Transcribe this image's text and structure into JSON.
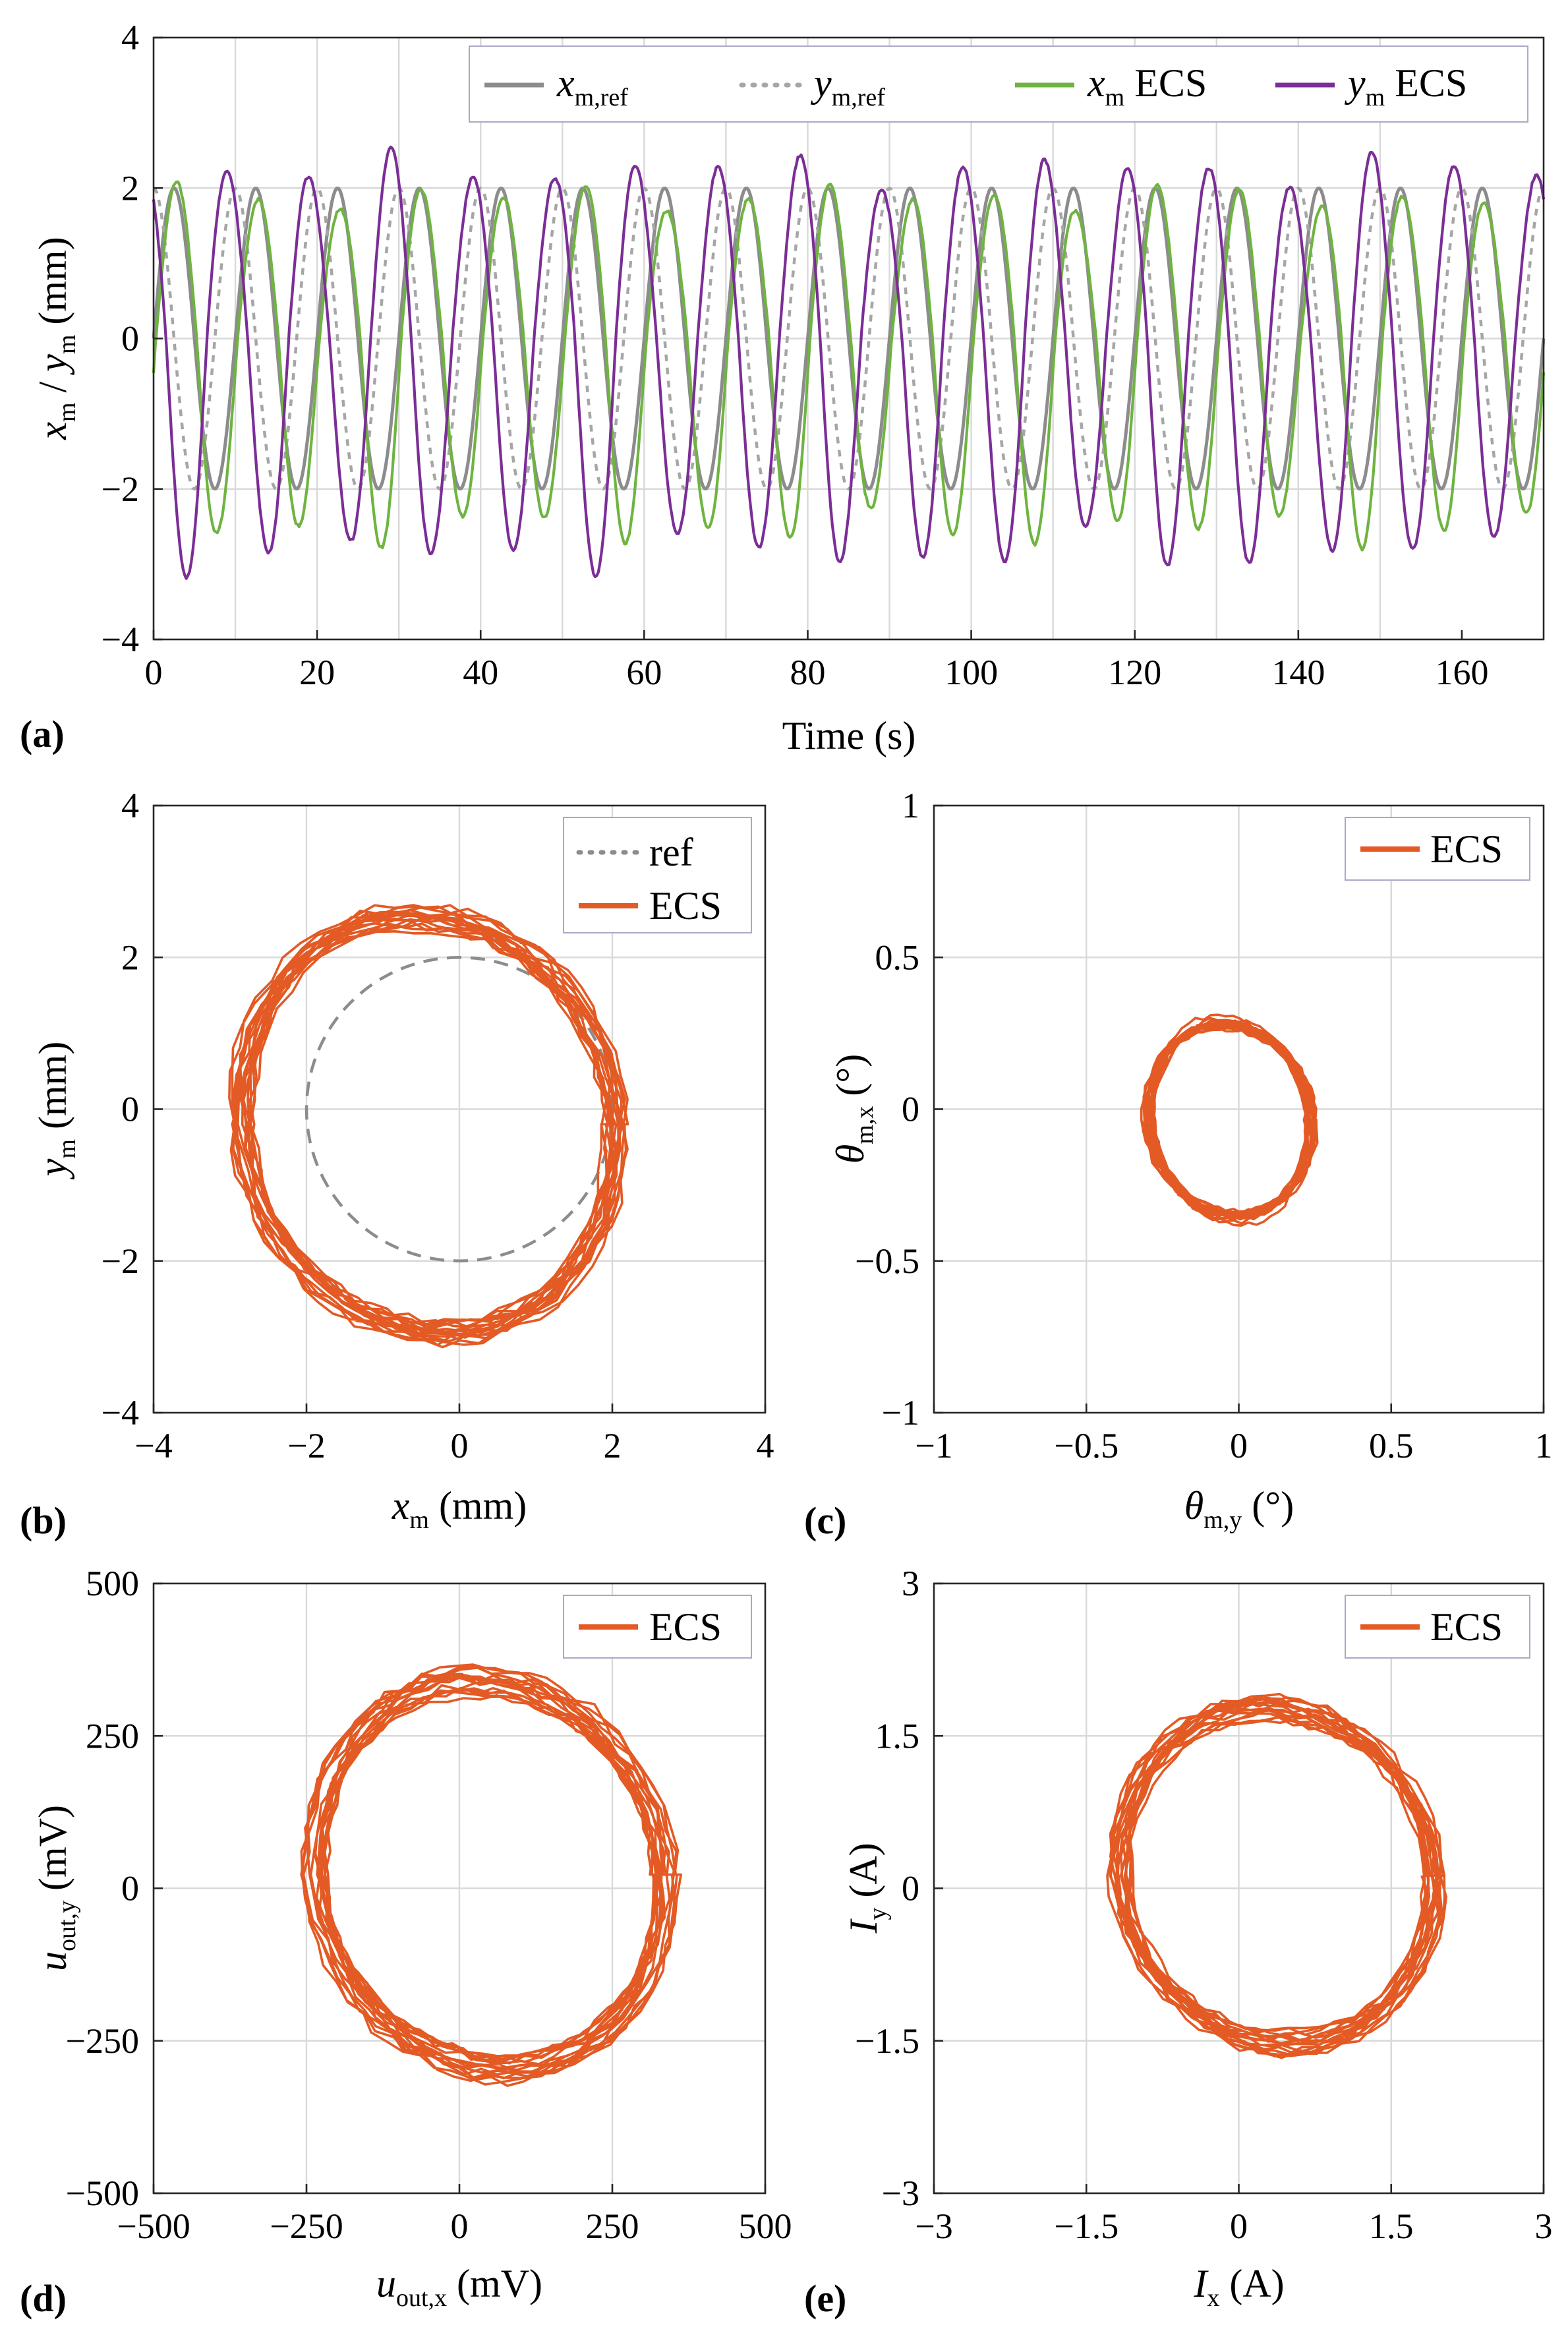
{
  "colors": {
    "xref": "#8c8c8c",
    "yref": "#a6a6a6",
    "xecs": "#6fb441",
    "yecs": "#7b2e96",
    "ecs": "#e35a24",
    "grid": "#d9d9d9"
  },
  "chart_data": [
    {
      "id": "a",
      "type": "line",
      "panel_label": "(a)",
      "xlabel": "Time (s)",
      "ylabel": "x_m / y_m (mm)",
      "xlim": [
        0,
        170
      ],
      "ylim": [
        -4,
        4
      ],
      "xticks": [
        0,
        20,
        40,
        60,
        80,
        100,
        120,
        140,
        160
      ],
      "yticks": [
        -4,
        -2,
        0,
        2,
        4
      ],
      "xticklabels": [
        "0",
        "20",
        "40",
        "60",
        "80",
        "100",
        "120",
        "140",
        "160"
      ],
      "yticklabels": [
        "−4",
        "−2",
        "0",
        "2",
        "4"
      ],
      "legend": [
        "x_m,ref",
        "y_m,ref",
        "x_m ECS",
        "y_m ECS"
      ],
      "series": [
        {
          "name": "x_m,ref",
          "style": "solid",
          "color": "#8c8c8c",
          "signal": "sin",
          "amplitude": 2,
          "period_s": 10.0,
          "phase_deg": 0
        },
        {
          "name": "y_m,ref",
          "style": "dotted",
          "color": "#a6a6a6",
          "signal": "cos",
          "amplitude": 2,
          "period_s": 10.0,
          "phase_deg": 0
        },
        {
          "name": "x_m ECS",
          "style": "solid",
          "color": "#6fb441",
          "signal": "sin",
          "amplitude_pos": 2.05,
          "amplitude_neg": 2.75,
          "period_s": 10.0,
          "phase_deg": -10
        },
        {
          "name": "y_m ECS",
          "style": "solid",
          "color": "#7b2e96",
          "signal": "cos",
          "amplitude_pos": 2.45,
          "amplitude_neg": 3.1,
          "period_s": 10.0,
          "phase_deg": 35
        }
      ]
    },
    {
      "id": "b",
      "type": "line",
      "panel_label": "(b)",
      "xlabel": "x_m (mm)",
      "ylabel": "y_m (mm)",
      "xlim": [
        -4,
        4
      ],
      "ylim": [
        -4,
        4
      ],
      "xticks": [
        -4,
        -2,
        0,
        2,
        4
      ],
      "yticks": [
        -4,
        -2,
        0,
        2,
        4
      ],
      "xticklabels": [
        "−4",
        "−2",
        "0",
        "2",
        "4"
      ],
      "yticklabels": [
        "−4",
        "−2",
        "0",
        "2",
        "4"
      ],
      "legend": [
        "ref",
        "ECS"
      ],
      "series": [
        {
          "name": "ref",
          "style": "dashed",
          "color": "#8c8c8c",
          "shape": "circle",
          "center": [
            0,
            0
          ],
          "radius": 2
        },
        {
          "name": "ECS",
          "style": "solid",
          "color": "#e35a24",
          "shape": "loop",
          "x_range": [
            -2.9,
            2.1
          ],
          "y_range": [
            -3.3,
            2.9
          ],
          "loops": 17
        }
      ]
    },
    {
      "id": "c",
      "type": "line",
      "panel_label": "(c)",
      "xlabel": "θ_m,y (°)",
      "ylabel": "θ_m,x (°)",
      "xlim": [
        -1,
        1
      ],
      "ylim": [
        -1,
        1
      ],
      "xticks": [
        -1,
        -0.5,
        0,
        0.5,
        1
      ],
      "yticks": [
        -1,
        -0.5,
        0,
        0.5,
        1
      ],
      "xticklabels": [
        "−1",
        "−0.5",
        "0",
        "0.5",
        "1"
      ],
      "yticklabels": [
        "−1",
        "−0.5",
        "0",
        "0.5",
        "1"
      ],
      "legend": [
        "ECS"
      ],
      "series": [
        {
          "name": "ECS",
          "style": "solid",
          "color": "#e35a24",
          "shape": "loop",
          "x_range": [
            -0.3,
            0.24
          ],
          "y_range": [
            -0.4,
            0.33
          ],
          "loops": 17
        }
      ]
    },
    {
      "id": "d",
      "type": "line",
      "panel_label": "(d)",
      "xlabel": "u_out,x (mV)",
      "ylabel": "u_out,y (mV)",
      "xlim": [
        -500,
        500
      ],
      "ylim": [
        -500,
        500
      ],
      "xticks": [
        -500,
        -250,
        0,
        250,
        500
      ],
      "yticks": [
        -500,
        -250,
        0,
        250,
        500
      ],
      "xticklabels": [
        "−500",
        "−250",
        "0",
        "250",
        "500"
      ],
      "yticklabels": [
        "−500",
        "−250",
        "0",
        "250",
        "500"
      ],
      "legend": [
        "ECS"
      ],
      "series": [
        {
          "name": "ECS",
          "style": "solid",
          "color": "#e35a24",
          "shape": "loop",
          "x_range": [
            -240,
            340
          ],
          "y_range": [
            -335,
            380
          ],
          "loops": 17
        }
      ]
    },
    {
      "id": "e",
      "type": "line",
      "panel_label": "(e)",
      "xlabel": "I_x (A)",
      "ylabel": "I_y (A)",
      "xlim": [
        -3,
        3
      ],
      "ylim": [
        -3,
        3
      ],
      "xticks": [
        -3,
        -1.5,
        0,
        1.5,
        3
      ],
      "yticks": [
        -3,
        -1.5,
        0,
        1.5,
        3
      ],
      "xticklabels": [
        "−3",
        "−1.5",
        "0",
        "1.5",
        "3"
      ],
      "yticklabels": [
        "−3",
        "−1.5",
        "0",
        "1.5",
        "3"
      ],
      "legend": [
        "ECS"
      ],
      "series": [
        {
          "name": "ECS",
          "style": "solid",
          "color": "#e35a24",
          "shape": "loop",
          "x_range": [
            -1.2,
            1.95
          ],
          "y_range": [
            -1.75,
            2.0
          ],
          "loops": 17
        }
      ]
    }
  ],
  "text": {
    "a_letter": "(a)",
    "b_letter": "(b)",
    "c_letter": "(c)",
    "d_letter": "(d)",
    "e_letter": "(e)",
    "a_xlabel": "Time (s)",
    "a_ylabel_x": "x",
    "a_ylabel_xsub": "m",
    "a_ylabel_slash": " / ",
    "a_ylabel_y": "y",
    "a_ylabel_ysub": "m",
    "a_ylabel_unit": " (mm)",
    "a_leg1_v": "x",
    "a_leg1_s": "m,ref",
    "a_leg2_v": "y",
    "a_leg2_s": "m,ref",
    "a_leg3_v": "x",
    "a_leg3_s": "m",
    "a_leg3_t": " ECS",
    "a_leg4_v": "y",
    "a_leg4_s": "m",
    "a_leg4_t": " ECS",
    "b_xlabel_v": "x",
    "b_xlabel_s": "m",
    "b_xlabel_u": " (mm)",
    "b_ylabel_v": "y",
    "b_ylabel_s": "m",
    "b_ylabel_u": " (mm)",
    "b_leg1": "ref",
    "b_leg2": "ECS",
    "c_xlabel_v": "θ",
    "c_xlabel_s": "m,y",
    "c_xlabel_u": " (°)",
    "c_ylabel_v": "θ",
    "c_ylabel_s": "m,x",
    "c_ylabel_u": " (°)",
    "c_leg": "ECS",
    "d_xlabel_v": "u",
    "d_xlabel_s": "out,x",
    "d_xlabel_u": " (mV)",
    "d_ylabel_v": "u",
    "d_ylabel_s": "out,y",
    "d_ylabel_u": " (mV)",
    "d_leg": "ECS",
    "e_xlabel_v": "I",
    "e_xlabel_s": "x",
    "e_xlabel_u": " (A)",
    "e_ylabel_v": "I",
    "e_ylabel_s": "y",
    "e_ylabel_u": " (A)",
    "e_leg": "ECS"
  }
}
